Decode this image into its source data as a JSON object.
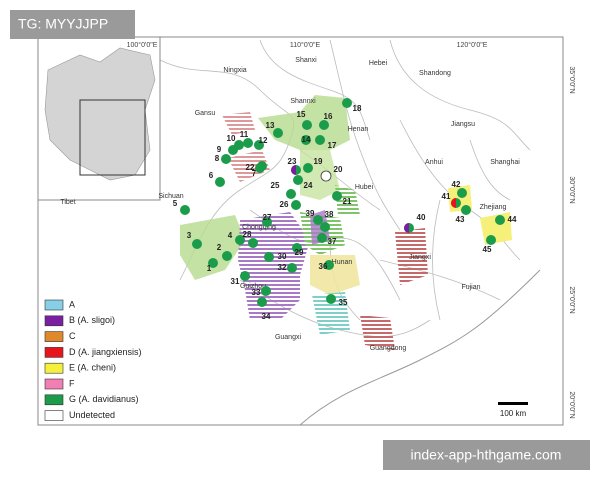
{
  "watermark_top": "TG: MYYJJPP",
  "watermark_bottom": "index-app-hthgame.com",
  "longitude_labels": [
    "100°0'0\"E",
    "110°0'0\"E",
    "120°0'0\"E"
  ],
  "latitude_labels": [
    "35°0'0\"N",
    "30°0'0\"N",
    "25°0'0\"N",
    "20°0'0\"N"
  ],
  "regions": [
    "Ningxia",
    "Shanxi",
    "Hebei",
    "Shandong",
    "Gansu",
    "Shannxi",
    "Henan",
    "Jiangsu",
    "Anhui",
    "Shanghai",
    "Sichuan",
    "Hubei",
    "Zhejiang",
    "Chongqing",
    "Hunan",
    "Jiangxi",
    "Guizhou",
    "Fujian",
    "Guangxi",
    "Guangdong",
    "Tibet"
  ],
  "site_labels": [
    "1",
    "2",
    "3",
    "4",
    "5",
    "6",
    "7",
    "8",
    "9",
    "10",
    "11",
    "12",
    "13",
    "14",
    "15",
    "16",
    "17",
    "18",
    "19",
    "20",
    "21",
    "22",
    "23",
    "24",
    "25",
    "26",
    "27",
    "28",
    "29",
    "30",
    "31",
    "32",
    "33",
    "34",
    "35",
    "36",
    "37",
    "38",
    "39",
    "40",
    "41",
    "42",
    "43",
    "44",
    "45"
  ],
  "legend": [
    {
      "label": "A",
      "color": "#86cfe6"
    },
    {
      "label": "B (A. sligoi)",
      "color": "#7b1fa2"
    },
    {
      "label": "C",
      "color": "#e0892a"
    },
    {
      "label": "D (A. jiangxiensis)",
      "color": "#e8141b"
    },
    {
      "label": "E (A. cheni)",
      "color": "#f5f03c"
    },
    {
      "label": "F",
      "color": "#f27fb4"
    },
    {
      "label": "G (A. davidianus)",
      "color": "#1a9c4a"
    },
    {
      "label": "Undetected",
      "color": "#ffffff"
    }
  ],
  "scale_bar": "100 km"
}
